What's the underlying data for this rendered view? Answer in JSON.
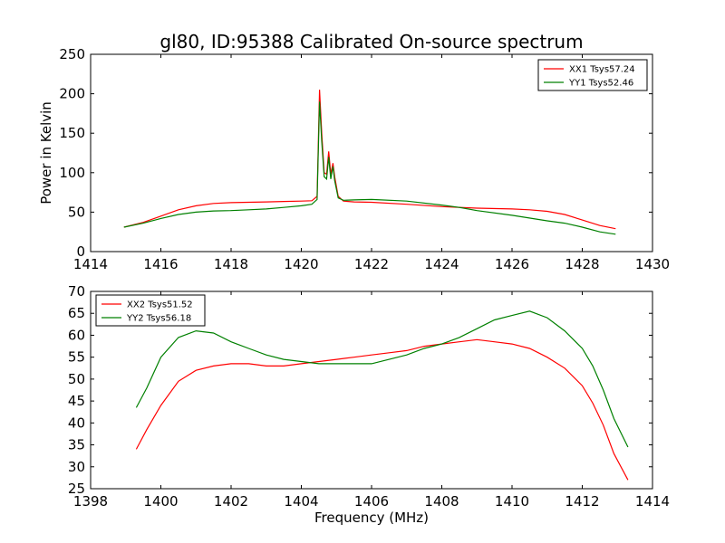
{
  "title": "gl80, ID:95388 Calibrated On-source spectrum",
  "chart_data": [
    {
      "type": "line",
      "title": "gl80, ID:95388 Calibrated On-source spectrum",
      "xlabel": "",
      "ylabel": "Power in Kelvin",
      "xlim": [
        1414,
        1430
      ],
      "ylim": [
        0,
        250
      ],
      "xticks": [
        1414,
        1416,
        1418,
        1420,
        1422,
        1424,
        1426,
        1428,
        1430
      ],
      "yticks": [
        0,
        50,
        100,
        150,
        200,
        250
      ],
      "grid": false,
      "legend_position": "top-right",
      "series": [
        {
          "name": "XX1 Tsys57.24",
          "color": "#ff0000",
          "points": [
            [
              1414.95,
              31
            ],
            [
              1415.5,
              37
            ],
            [
              1416,
              45
            ],
            [
              1416.5,
              53
            ],
            [
              1417,
              58
            ],
            [
              1417.5,
              61
            ],
            [
              1418,
              62
            ],
            [
              1418.5,
              62.5
            ],
            [
              1419,
              63
            ],
            [
              1419.5,
              63.5
            ],
            [
              1420,
              64
            ],
            [
              1420.3,
              64.5
            ],
            [
              1420.45,
              70
            ],
            [
              1420.52,
              205
            ],
            [
              1420.58,
              150
            ],
            [
              1420.65,
              100
            ],
            [
              1420.72,
              98
            ],
            [
              1420.78,
              127
            ],
            [
              1420.84,
              98
            ],
            [
              1420.9,
              112
            ],
            [
              1420.95,
              95
            ],
            [
              1421.05,
              70
            ],
            [
              1421.2,
              64
            ],
            [
              1421.5,
              63
            ],
            [
              1422,
              62.5
            ],
            [
              1423,
              60
            ],
            [
              1424,
              57
            ],
            [
              1425,
              55
            ],
            [
              1426,
              54
            ],
            [
              1426.5,
              53
            ],
            [
              1427,
              51
            ],
            [
              1427.5,
              47
            ],
            [
              1428,
              40
            ],
            [
              1428.5,
              33
            ],
            [
              1428.95,
              29
            ]
          ]
        },
        {
          "name": "YY1 Tsys52.46",
          "color": "#008000",
          "points": [
            [
              1414.95,
              31
            ],
            [
              1415.5,
              36
            ],
            [
              1416,
              42
            ],
            [
              1416.5,
              47
            ],
            [
              1417,
              50
            ],
            [
              1417.5,
              51.5
            ],
            [
              1418,
              52
            ],
            [
              1418.5,
              53
            ],
            [
              1419,
              54
            ],
            [
              1419.5,
              56
            ],
            [
              1420,
              58
            ],
            [
              1420.3,
              60
            ],
            [
              1420.45,
              66
            ],
            [
              1420.52,
              190
            ],
            [
              1420.58,
              140
            ],
            [
              1420.65,
              95
            ],
            [
              1420.72,
              92
            ],
            [
              1420.78,
              120
            ],
            [
              1420.84,
              92
            ],
            [
              1420.9,
              108
            ],
            [
              1420.95,
              90
            ],
            [
              1421.05,
              68
            ],
            [
              1421.2,
              65
            ],
            [
              1421.5,
              65.5
            ],
            [
              1422,
              66
            ],
            [
              1423,
              64
            ],
            [
              1424,
              59
            ],
            [
              1424.5,
              56
            ],
            [
              1425,
              52
            ],
            [
              1426,
              46
            ],
            [
              1427,
              39
            ],
            [
              1427.5,
              36
            ],
            [
              1428,
              31
            ],
            [
              1428.5,
              25
            ],
            [
              1428.95,
              22
            ]
          ]
        }
      ]
    },
    {
      "type": "line",
      "title": "",
      "xlabel": "Frequency (MHz)",
      "ylabel": "",
      "xlim": [
        1398,
        1414
      ],
      "ylim": [
        25,
        70
      ],
      "xticks": [
        1398,
        1400,
        1402,
        1404,
        1406,
        1408,
        1410,
        1412,
        1414
      ],
      "yticks": [
        25,
        30,
        35,
        40,
        45,
        50,
        55,
        60,
        65,
        70
      ],
      "grid": false,
      "legend_position": "top-left",
      "series": [
        {
          "name": "XX2 Tsys51.52",
          "color": "#ff0000",
          "points": [
            [
              1399.3,
              34
            ],
            [
              1399.6,
              38.5
            ],
            [
              1400,
              44
            ],
            [
              1400.5,
              49.5
            ],
            [
              1401,
              52
            ],
            [
              1401.5,
              53
            ],
            [
              1402,
              53.5
            ],
            [
              1402.5,
              53.5
            ],
            [
              1403,
              53
            ],
            [
              1403.5,
              53
            ],
            [
              1404,
              53.5
            ],
            [
              1404.5,
              54
            ],
            [
              1405,
              54.5
            ],
            [
              1405.5,
              55
            ],
            [
              1406,
              55.5
            ],
            [
              1406.5,
              56
            ],
            [
              1407,
              56.5
            ],
            [
              1407.5,
              57.5
            ],
            [
              1408,
              58
            ],
            [
              1408.5,
              58.5
            ],
            [
              1409,
              59
            ],
            [
              1409.5,
              58.5
            ],
            [
              1410,
              58
            ],
            [
              1410.5,
              57
            ],
            [
              1411,
              55
            ],
            [
              1411.5,
              52.5
            ],
            [
              1412,
              48.5
            ],
            [
              1412.3,
              44.5
            ],
            [
              1412.6,
              39.5
            ],
            [
              1412.9,
              33
            ],
            [
              1413.3,
              27
            ]
          ]
        },
        {
          "name": "YY2 Tsys56.18",
          "color": "#008000",
          "points": [
            [
              1399.3,
              43.5
            ],
            [
              1399.6,
              48
            ],
            [
              1400,
              55
            ],
            [
              1400.5,
              59.5
            ],
            [
              1401,
              61
            ],
            [
              1401.5,
              60.5
            ],
            [
              1402,
              58.5
            ],
            [
              1402.5,
              57
            ],
            [
              1403,
              55.5
            ],
            [
              1403.5,
              54.5
            ],
            [
              1404,
              54
            ],
            [
              1404.5,
              53.5
            ],
            [
              1405,
              53.5
            ],
            [
              1405.5,
              53.5
            ],
            [
              1406,
              53.5
            ],
            [
              1406.5,
              54.5
            ],
            [
              1407,
              55.5
            ],
            [
              1407.5,
              57
            ],
            [
              1408,
              58
            ],
            [
              1408.5,
              59.5
            ],
            [
              1409,
              61.5
            ],
            [
              1409.5,
              63.5
            ],
            [
              1410,
              64.5
            ],
            [
              1410.5,
              65.5
            ],
            [
              1411,
              64
            ],
            [
              1411.5,
              61
            ],
            [
              1412,
              57
            ],
            [
              1412.3,
              53
            ],
            [
              1412.6,
              47.5
            ],
            [
              1412.9,
              41
            ],
            [
              1413.3,
              34.5
            ]
          ]
        }
      ]
    }
  ]
}
